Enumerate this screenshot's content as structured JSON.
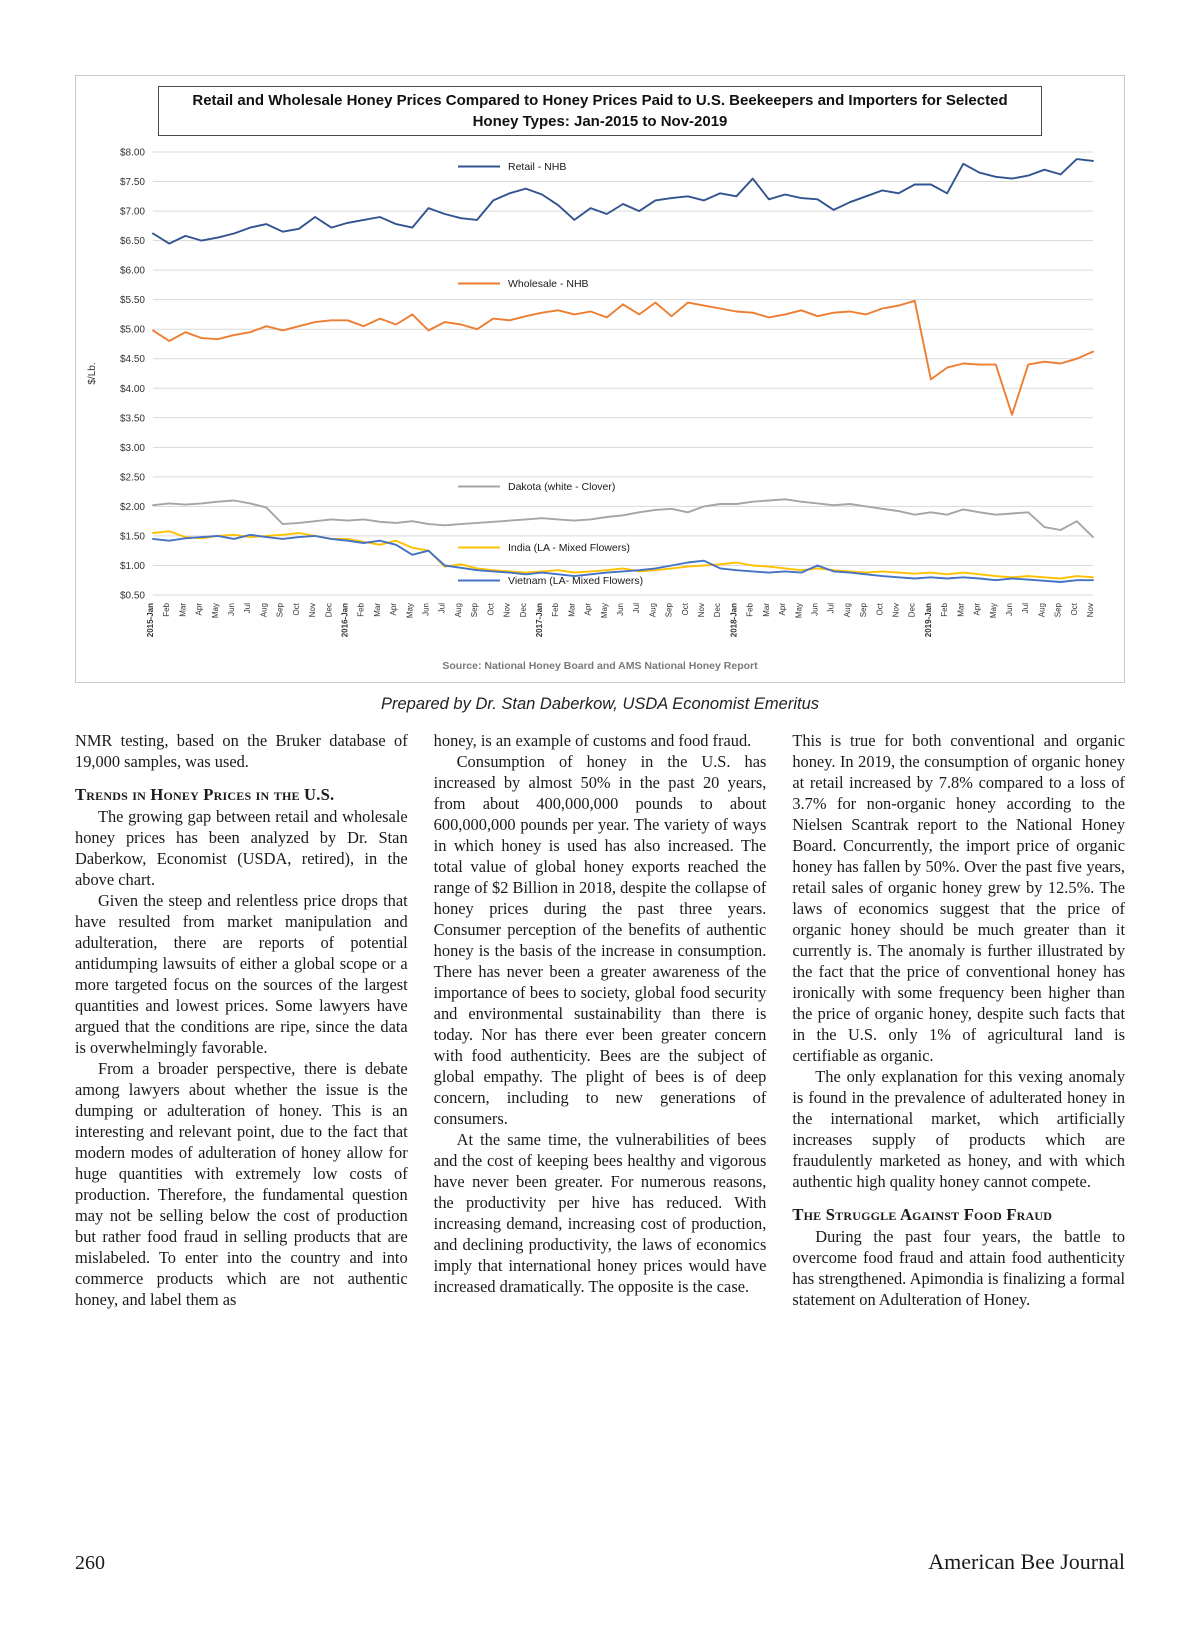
{
  "caption": "Prepared by Dr. Stan Daberkow, USDA Economist Emeritus",
  "footer": {
    "page_number": "260",
    "journal_name": "American Bee Journal"
  },
  "article": {
    "col1": [
      {
        "text": "NMR testing, based on the Bruker database of 19,000 samples, was used."
      },
      {
        "text": "Trends in Honey Prices in the U.S."
      },
      {
        "text": "The growing gap between retail and wholesale honey prices has been analyzed by Dr. Stan Daberkow, Economist (USDA, retired), in the above chart."
      },
      {
        "text": "Given the steep and relentless price drops that have resulted from market manipulation and adulteration, there are reports of potential antidumping lawsuits of either a global scope or a more targeted focus on the sources of the largest quantities and lowest prices. Some lawyers have argued that the conditions are ripe, since the data is overwhelmingly favorable."
      },
      {
        "text": "From a broader perspective, there is debate among lawyers about whether the issue is the dumping or adulteration of honey. This is an interesting and relevant point, due to the fact that modern modes of adulteration of honey allow for huge quantities with extremely low costs of production. Therefore, the fundamental question may not be selling below the cost of production but rather food fraud in selling products that are mislabeled. To enter into the country and into commerce products which are not authentic honey, and label them as"
      }
    ],
    "col2": [
      {
        "text": "honey, is an example of customs and food fraud."
      },
      {
        "text": "Consumption of honey in the U.S. has increased by almost 50% in the past 20 years, from about 400,000,000 pounds to about 600,000,000 pounds per year. The variety of ways in which honey is used has also increased. The total value of global honey exports reached the range of $2 Billion in 2018, despite the collapse of honey prices during the past three years. Consumer perception of the benefits of authentic honey is the basis of the increase in consumption. There has never been a greater awareness of the importance of bees to society, global food security and environmental sustainability than there is today. Nor has there ever been greater concern with food authenticity. Bees are the subject of global empathy. The plight of bees is of deep concern, including to new generations of consumers."
      },
      {
        "text": "At the same time, the vulnerabilities of bees and the cost of keeping bees healthy and vigorous have never been greater. For numerous reasons, the productivity per hive has reduced. With increasing demand, increasing cost of production, and declining productivity, the laws of economics imply that international honey prices would have increased dramatically. The opposite is the case."
      }
    ],
    "col3": [
      {
        "text": "This is true for both conventional and organic honey. In 2019, the consumption of organic honey at retail increased by 7.8% compared to a loss of 3.7% for non-organic honey according to the Nielsen Scantrak report to the National Honey Board. Concurrently, the import price of organic honey has fallen by 50%. Over the past five years, retail sales of organic honey grew by 12.5%. The laws of economics suggest that the price of organic honey should be much greater than it currently is. The anomaly is further illustrated by the fact that the price of conventional honey has ironically with some frequency been higher than the price of organic honey, despite such facts that in the U.S. only 1% of agricultural land is certifiable as organic."
      },
      {
        "text": "The only explanation for this vexing anomaly is found in the prevalence of adulterated honey in the international market, which artificially increases supply of products which are fraudulently marketed as honey, and with which authentic high quality honey cannot compete."
      },
      {
        "text": "The Struggle Against Food Fraud"
      },
      {
        "text": "During the past four years, the battle to overcome food fraud and attain food authenticity has strengthened. Apimondia is finalizing a formal statement on Adulteration of Honey."
      }
    ],
    "chart_data_note": "values estimated from plotted lines",
    "chart_data": null
  },
  "chart_data": {
    "type": "line",
    "title": "Retail and Wholesale Honey Prices Compared to Honey Prices Paid to U.S. Beekeepers  and Importers for Selected Honey Types: Jan-2015 to Nov-2019",
    "ylabel": "$/Lb.",
    "ylim": [
      0.5,
      8.0
    ],
    "ytick_step": 0.5,
    "grid": true,
    "legend_position": "inline-labels",
    "source": "Source: National Honey Board and AMS National Honey Report",
    "x": [
      "2015-Jan",
      "Feb",
      "Mar",
      "Apr",
      "May",
      "Jun",
      "Jul",
      "Aug",
      "Sep",
      "Oct",
      "Nov",
      "Dec",
      "2016-Jan",
      "Feb",
      "Mar",
      "Apr",
      "May",
      "Jun",
      "Jul",
      "Aug",
      "Sep",
      "Oct",
      "Nov",
      "Dec",
      "2017-Jan",
      "Feb",
      "Mar",
      "Apr",
      "May",
      "Jun",
      "Jul",
      "Aug",
      "Sep",
      "Oct",
      "Nov",
      "Dec",
      "2018-Jan",
      "Feb",
      "Mar",
      "Apr",
      "May",
      "Jun",
      "Jul",
      "Aug",
      "Sep",
      "Oct",
      "Nov",
      "Dec",
      "2019-Jan",
      "Feb",
      "Mar",
      "Apr",
      "May",
      "Jun",
      "Jul",
      "Aug",
      "Sep",
      "Oct",
      "Nov"
    ],
    "series": [
      {
        "name": "Retail - NHB",
        "color": "#31538f",
        "label_pos": [
          427,
          30
        ],
        "values": [
          6.62,
          6.45,
          6.58,
          6.5,
          6.55,
          6.62,
          6.72,
          6.78,
          6.65,
          6.7,
          6.9,
          6.72,
          6.8,
          6.85,
          6.9,
          6.78,
          6.72,
          7.05,
          6.95,
          6.88,
          6.85,
          7.18,
          7.3,
          7.38,
          7.28,
          7.1,
          6.85,
          7.05,
          6.95,
          7.12,
          7.0,
          7.18,
          7.22,
          7.25,
          7.18,
          7.3,
          7.25,
          7.55,
          7.2,
          7.28,
          7.22,
          7.2,
          7.02,
          7.15,
          7.25,
          7.35,
          7.3,
          7.45,
          7.45,
          7.3,
          7.8,
          7.65,
          7.58,
          7.55,
          7.6,
          7.7,
          7.62,
          7.88,
          7.85
        ]
      },
      {
        "name": "Wholesale - NHB",
        "color": "#ED7D31",
        "label_pos": [
          427,
          147
        ],
        "values": [
          4.98,
          4.8,
          4.95,
          4.85,
          4.83,
          4.9,
          4.95,
          5.05,
          4.98,
          5.05,
          5.12,
          5.15,
          5.15,
          5.05,
          5.18,
          5.08,
          5.25,
          4.98,
          5.12,
          5.08,
          5.0,
          5.18,
          5.15,
          5.22,
          5.28,
          5.32,
          5.25,
          5.3,
          5.2,
          5.42,
          5.25,
          5.45,
          5.22,
          5.45,
          5.4,
          5.35,
          5.3,
          5.28,
          5.2,
          5.25,
          5.32,
          5.22,
          5.28,
          5.3,
          5.25,
          5.35,
          5.4,
          5.48,
          4.15,
          4.35,
          4.42,
          4.4,
          4.4,
          3.55,
          4.4,
          4.45,
          4.42,
          4.5,
          4.62
        ]
      },
      {
        "name": "Dakota (white - Clover)",
        "color": "#A5A5A5",
        "label_pos": [
          427,
          350
        ],
        "values": [
          2.02,
          2.05,
          2.03,
          2.05,
          2.08,
          2.1,
          2.05,
          1.98,
          1.7,
          1.72,
          1.75,
          1.78,
          1.76,
          1.78,
          1.74,
          1.72,
          1.75,
          1.7,
          1.68,
          1.7,
          1.72,
          1.74,
          1.76,
          1.78,
          1.8,
          1.78,
          1.76,
          1.78,
          1.82,
          1.85,
          1.9,
          1.94,
          1.96,
          1.9,
          2.0,
          2.04,
          2.04,
          2.08,
          2.1,
          2.12,
          2.08,
          2.05,
          2.02,
          2.04,
          2.0,
          1.96,
          1.92,
          1.86,
          1.9,
          1.86,
          1.95,
          1.9,
          1.86,
          1.88,
          1.9,
          1.65,
          1.6,
          1.75,
          1.48
        ]
      },
      {
        "name": "India (LA - Mixed Flowers)",
        "color": "#FFC000",
        "label_pos": [
          427,
          411
        ],
        "values": [
          1.55,
          1.58,
          1.48,
          1.46,
          1.5,
          1.52,
          1.48,
          1.5,
          1.52,
          1.55,
          1.5,
          1.45,
          1.45,
          1.4,
          1.35,
          1.42,
          1.3,
          1.25,
          0.98,
          1.02,
          0.95,
          0.92,
          0.9,
          0.88,
          0.9,
          0.92,
          0.88,
          0.9,
          0.92,
          0.95,
          0.9,
          0.92,
          0.95,
          0.98,
          1.0,
          1.02,
          1.05,
          1.0,
          0.98,
          0.95,
          0.92,
          0.95,
          0.92,
          0.9,
          0.88,
          0.9,
          0.88,
          0.86,
          0.88,
          0.85,
          0.88,
          0.85,
          0.82,
          0.8,
          0.82,
          0.8,
          0.78,
          0.82,
          0.8
        ]
      },
      {
        "name": "Vietnam (LA- Mixed Flowers)",
        "color": "#4472C4",
        "label_pos": [
          427,
          444
        ],
        "values": [
          1.45,
          1.42,
          1.46,
          1.48,
          1.5,
          1.45,
          1.52,
          1.48,
          1.45,
          1.48,
          1.5,
          1.45,
          1.42,
          1.38,
          1.42,
          1.35,
          1.18,
          1.25,
          1.0,
          0.96,
          0.92,
          0.9,
          0.88,
          0.85,
          0.88,
          0.85,
          0.82,
          0.85,
          0.88,
          0.9,
          0.92,
          0.95,
          1.0,
          1.05,
          1.08,
          0.95,
          0.92,
          0.9,
          0.88,
          0.9,
          0.88,
          1.0,
          0.9,
          0.88,
          0.85,
          0.82,
          0.8,
          0.78,
          0.8,
          0.78,
          0.8,
          0.78,
          0.75,
          0.78,
          0.76,
          0.74,
          0.72,
          0.75,
          0.75
        ]
      }
    ]
  }
}
